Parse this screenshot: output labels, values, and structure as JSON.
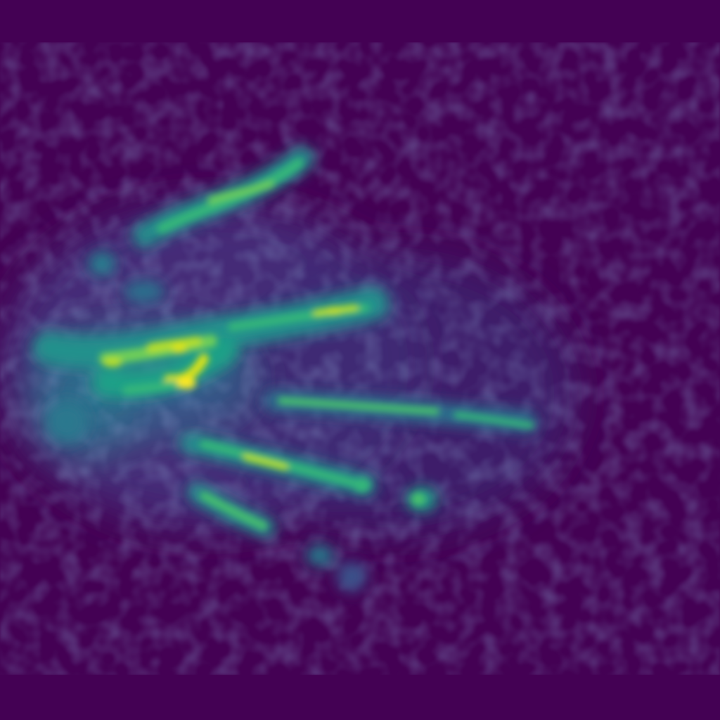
{
  "image": {
    "colormap": "viridis",
    "colors": {
      "background": "#440154",
      "low": "#46327e",
      "mid_low": "#365c8d",
      "mid": "#277f8e",
      "mid_high": "#1fa187",
      "high": "#4ac16d",
      "peak": "#fde725"
    }
  }
}
